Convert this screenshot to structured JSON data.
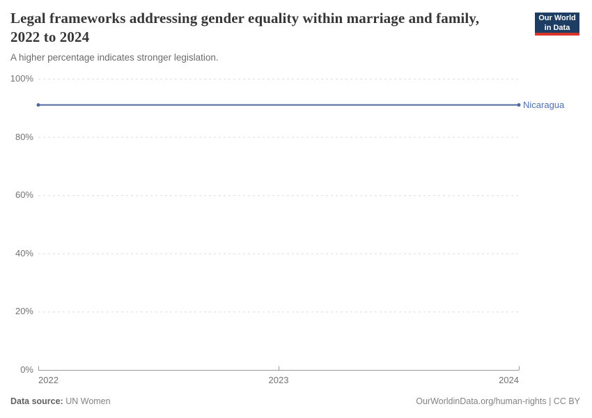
{
  "header": {
    "title": "Legal frameworks addressing gender equality within marriage and family, 2022 to 2024",
    "subtitle": "A higher percentage indicates stronger legislation.",
    "logo": {
      "line1": "Our World",
      "line2": "in Data"
    }
  },
  "chart_data": {
    "type": "line",
    "title": "Legal frameworks addressing gender equality within marriage and family",
    "x": [
      2022,
      2023,
      2024
    ],
    "series": [
      {
        "name": "Nicaragua",
        "values": [
          91,
          91,
          91
        ],
        "color": "#4c6a9c"
      }
    ],
    "xlim": [
      2022,
      2024
    ],
    "ylim": [
      0,
      100
    ],
    "xticks": [
      2022,
      2023,
      2024
    ],
    "yticks": [
      0,
      20,
      40,
      60,
      80,
      100
    ],
    "ytick_suffix": "%",
    "grid": "horizontal-dashed",
    "legend_position": "line-end-label"
  },
  "footer": {
    "data_source_label": "Data source:",
    "data_source_value": "UN Women",
    "credit": "OurWorldinData.org/human-rights | CC BY"
  },
  "colors": {
    "line": "#4c6a9c",
    "entity_label": "#4c6fae",
    "grid": "#dcdcdc",
    "axis": "#999999",
    "tick_text": "#737373",
    "logo_bg": "#1d3d63",
    "logo_accent": "#d7342c"
  }
}
